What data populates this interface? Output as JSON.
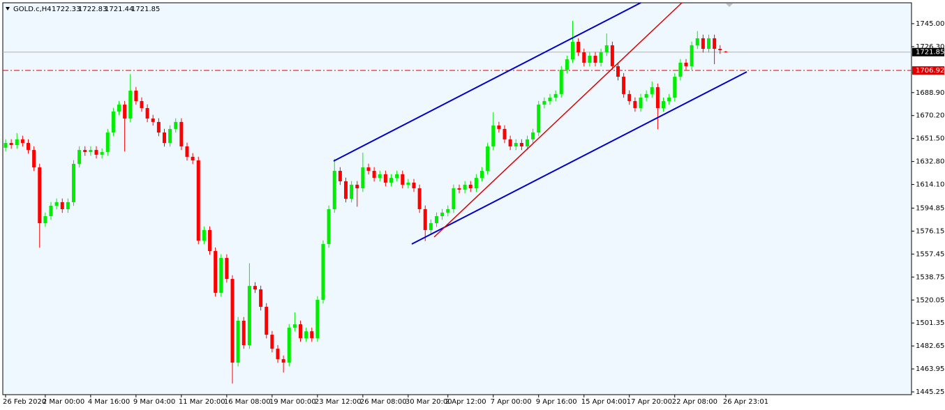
{
  "chart_data": {
    "type": "candlestick",
    "title": "GOLD.c,H4",
    "bull_color": "#00ee00",
    "bear_color": "#ff0000",
    "categories": [
      "26 Feb 2020",
      null,
      null,
      null,
      null,
      null,
      null,
      "2 Mar 00:00",
      null,
      null,
      null,
      null,
      null,
      null,
      null,
      "4 Mar 16:00",
      null,
      null,
      null,
      null,
      null,
      null,
      null,
      "9 Mar 04:00",
      null,
      null,
      null,
      null,
      null,
      null,
      null,
      "11 Mar 20:00",
      null,
      null,
      null,
      null,
      null,
      null,
      null,
      "16 Mar 08:00",
      null,
      null,
      null,
      null,
      null,
      null,
      null,
      "19 Mar 00:00",
      null,
      null,
      null,
      null,
      null,
      null,
      null,
      "23 Mar 12:00",
      null,
      null,
      null,
      null,
      null,
      null,
      null,
      "26 Mar 08:00",
      null,
      null,
      null,
      null,
      null,
      null,
      null,
      "30 Mar 20:00",
      null,
      null,
      null,
      null,
      null,
      null,
      "2 Apr 12:00",
      null,
      null,
      null,
      null,
      null,
      null,
      null,
      "7 Apr 00:00",
      null,
      null,
      null,
      null,
      null,
      null,
      null,
      "9 Apr 16:00",
      null,
      null,
      null,
      null,
      null,
      null,
      null,
      "15 Apr 04:00",
      null,
      null,
      null,
      null,
      null,
      null,
      null,
      "17 Apr 20:00",
      null,
      null,
      null,
      null,
      null,
      null,
      null,
      "22 Apr 08:00",
      null,
      null,
      null,
      null,
      null,
      null,
      null,
      null,
      "26 Apr 23:01"
    ],
    "open": [
      1644.0,
      1647.9,
      1646.2,
      1650.8,
      1647.9,
      1642.2,
      1628.0,
      1582.6,
      1588.3,
      1596.8,
      1599.7,
      1594.0,
      1599.7,
      1630.9,
      1642.2,
      1640.5,
      1642.2,
      1638.3,
      1640.5,
      1656.4,
      1673.5,
      1679.1,
      1667.8,
      1690.5,
      1682.0,
      1676.3,
      1667.8,
      1665.0,
      1656.4,
      1647.9,
      1659.3,
      1665.0,
      1645.1,
      1636.6,
      1633.7,
      1568.4,
      1577.0,
      1559.9,
      1525.9,
      1554.3,
      1537.2,
      1469.1,
      1503.2,
      1483.3,
      1531.5,
      1528.7,
      1514.5,
      1491.8,
      1480.4,
      1471.9,
      1469.1,
      1497.5,
      1500.3,
      1489.0,
      1494.6,
      1489.0,
      1520.2,
      1565.6,
      1594.0,
      1625.2,
      1616.7,
      1602.5,
      1613.9,
      1611.0,
      1628.0,
      1625.2,
      1619.5,
      1622.4,
      1615.6,
      1619.5,
      1622.4,
      1613.9,
      1615.6,
      1611.0,
      1594.0,
      1577.0,
      1582.6,
      1588.3,
      1591.2,
      1594.0,
      1611.0,
      1609.9,
      1613.9,
      1611.0,
      1619.5,
      1625.2,
      1645.1,
      1662.1,
      1659.3,
      1650.8,
      1645.1,
      1647.9,
      1645.1,
      1650.8,
      1656.4,
      1679.1,
      1682.0,
      1684.8,
      1687.7,
      1707.5,
      1716.0,
      1730.2,
      1721.7,
      1713.2,
      1718.9,
      1713.2,
      1721.7,
      1727.4,
      1710.4,
      1701.8,
      1687.7,
      1682.0,
      1676.3,
      1684.8,
      1687.7,
      1693.3,
      1676.3,
      1682.0,
      1684.8,
      1701.8,
      1713.2,
      1710.4,
      1727.4,
      1733.1,
      1724.5,
      1733.1,
      1724.5,
      1722.33
    ],
    "high": [
      1650.9,
      1650.9,
      1656.0,
      1653.8,
      1650.9,
      1645.2,
      1631.0,
      1591.3,
      1599.8,
      1602.7,
      1602.7,
      1602.7,
      1633.9,
      1645.2,
      1645.2,
      1645.2,
      1645.2,
      1643.5,
      1659.4,
      1676.5,
      1682.1,
      1682.1,
      1704.0,
      1693.5,
      1685.0,
      1679.3,
      1670.8,
      1668.0,
      1659.4,
      1662.3,
      1668.0,
      1668.0,
      1648.1,
      1639.6,
      1636.7,
      1580.0,
      1580.0,
      1562.9,
      1557.3,
      1557.3,
      1540.2,
      1506.2,
      1506.2,
      1550.0,
      1534.5,
      1531.7,
      1517.5,
      1494.8,
      1483.4,
      1474.9,
      1500.5,
      1510.0,
      1503.3,
      1497.6,
      1497.6,
      1523.2,
      1568.6,
      1597.0,
      1635.0,
      1628.2,
      1619.7,
      1616.9,
      1616.9,
      1640.0,
      1631.0,
      1628.2,
      1625.4,
      1625.4,
      1622.5,
      1625.4,
      1625.4,
      1618.6,
      1618.6,
      1614.0,
      1597.0,
      1585.6,
      1591.3,
      1594.2,
      1597.0,
      1614.0,
      1614.0,
      1616.9,
      1616.9,
      1622.5,
      1628.2,
      1648.1,
      1673.0,
      1665.1,
      1662.3,
      1653.8,
      1650.9,
      1650.9,
      1653.8,
      1659.4,
      1682.1,
      1685.0,
      1687.8,
      1690.7,
      1710.5,
      1719.0,
      1747.3,
      1733.2,
      1724.7,
      1721.9,
      1721.9,
      1724.7,
      1737.0,
      1730.4,
      1713.4,
      1704.8,
      1690.7,
      1685.0,
      1687.8,
      1690.7,
      1698.0,
      1696.3,
      1685.0,
      1687.8,
      1704.8,
      1716.2,
      1716.2,
      1730.4,
      1739.0,
      1736.1,
      1736.1,
      1736.1,
      1727.5,
      1722.83
    ],
    "low": [
      1641.0,
      1643.2,
      1643.2,
      1644.9,
      1639.2,
      1625.0,
      1562.7,
      1579.6,
      1585.3,
      1593.8,
      1591.0,
      1591.0,
      1596.7,
      1627.9,
      1637.5,
      1637.5,
      1635.3,
      1635.3,
      1637.5,
      1653.4,
      1670.5,
      1641.0,
      1664.8,
      1679.0,
      1673.3,
      1664.8,
      1662.0,
      1653.4,
      1644.9,
      1644.9,
      1656.3,
      1642.1,
      1633.6,
      1630.7,
      1565.4,
      1565.4,
      1556.9,
      1522.9,
      1522.9,
      1534.2,
      1452.0,
      1466.1,
      1480.3,
      1480.3,
      1525.7,
      1511.5,
      1488.8,
      1477.4,
      1468.9,
      1461.0,
      1466.1,
      1494.5,
      1486.0,
      1486.0,
      1486.0,
      1486.0,
      1517.2,
      1562.6,
      1591.0,
      1613.7,
      1599.5,
      1599.5,
      1596.0,
      1608.0,
      1622.2,
      1616.5,
      1616.5,
      1612.6,
      1612.6,
      1616.5,
      1610.9,
      1610.9,
      1608.0,
      1591.0,
      1568.0,
      1574.0,
      1579.6,
      1585.3,
      1588.2,
      1591.0,
      1606.9,
      1606.9,
      1608.0,
      1608.0,
      1616.5,
      1622.2,
      1642.1,
      1656.3,
      1647.8,
      1642.1,
      1642.1,
      1642.1,
      1642.1,
      1647.8,
      1653.4,
      1676.1,
      1679.0,
      1681.8,
      1684.7,
      1704.5,
      1713.0,
      1718.7,
      1710.2,
      1710.2,
      1710.2,
      1710.2,
      1718.7,
      1707.4,
      1698.8,
      1684.7,
      1679.0,
      1673.3,
      1673.3,
      1681.8,
      1684.7,
      1659.0,
      1673.3,
      1679.0,
      1681.8,
      1698.8,
      1707.4,
      1707.4,
      1724.4,
      1721.5,
      1721.5,
      1712.0,
      1720.4,
      1721.44
    ],
    "close": [
      1647.9,
      1646.2,
      1650.8,
      1647.9,
      1642.2,
      1628.0,
      1582.6,
      1588.3,
      1596.8,
      1599.7,
      1594.0,
      1599.7,
      1630.9,
      1642.2,
      1640.5,
      1642.2,
      1638.3,
      1640.5,
      1656.4,
      1673.5,
      1679.1,
      1667.8,
      1690.5,
      1682.0,
      1676.3,
      1667.8,
      1665.0,
      1656.4,
      1647.9,
      1659.3,
      1665.0,
      1645.1,
      1636.6,
      1633.7,
      1568.4,
      1577.0,
      1559.9,
      1525.9,
      1554.3,
      1537.2,
      1469.1,
      1503.2,
      1483.3,
      1531.5,
      1528.7,
      1514.5,
      1491.8,
      1480.4,
      1471.9,
      1469.1,
      1497.5,
      1500.3,
      1489.0,
      1494.6,
      1489.0,
      1520.2,
      1565.6,
      1594.0,
      1625.2,
      1616.7,
      1602.5,
      1613.9,
      1611.0,
      1628.0,
      1625.2,
      1619.5,
      1622.4,
      1615.6,
      1619.5,
      1622.4,
      1613.9,
      1615.6,
      1611.0,
      1594.0,
      1577.0,
      1582.6,
      1588.3,
      1591.2,
      1594.0,
      1611.0,
      1609.9,
      1613.9,
      1611.0,
      1619.5,
      1625.2,
      1645.1,
      1662.1,
      1659.3,
      1650.8,
      1645.1,
      1647.9,
      1645.1,
      1650.8,
      1656.4,
      1679.1,
      1682.0,
      1684.8,
      1687.7,
      1707.5,
      1716.0,
      1730.2,
      1721.7,
      1713.2,
      1718.9,
      1713.2,
      1721.7,
      1727.4,
      1710.4,
      1701.8,
      1687.7,
      1682.0,
      1676.3,
      1684.8,
      1687.7,
      1693.3,
      1676.3,
      1682.0,
      1684.8,
      1701.8,
      1713.2,
      1710.4,
      1727.4,
      1733.1,
      1724.5,
      1733.1,
      1724.5,
      1723.4,
      1721.85
    ],
    "ylim": [
      1443.0,
      1762.0
    ],
    "yticks": [
      {
        "value": 1745.0,
        "label": "1745.00"
      },
      {
        "value": 1726.3,
        "label": "1726.30"
      },
      {
        "value": 1688.9,
        "label": "1688.90"
      },
      {
        "value": 1670.2,
        "label": "1670.20"
      },
      {
        "value": 1651.5,
        "label": "1651.50"
      },
      {
        "value": 1632.8,
        "label": "1632.80"
      },
      {
        "value": 1614.1,
        "label": "1614.10"
      },
      {
        "value": 1594.85,
        "label": "1594.85"
      },
      {
        "value": 1576.15,
        "label": "1576.15"
      },
      {
        "value": 1557.45,
        "label": "1557.45"
      },
      {
        "value": 1538.75,
        "label": "1538.75"
      },
      {
        "value": 1520.05,
        "label": "1520.05"
      },
      {
        "value": 1501.35,
        "label": "1501.35"
      },
      {
        "value": 1482.65,
        "label": "1482.65"
      },
      {
        "value": 1463.95,
        "label": "1463.95"
      },
      {
        "value": 1445.25,
        "label": "1445.25"
      }
    ],
    "level": {
      "value": 1706.92,
      "color": "#dd0000"
    },
    "grid": false
  }
}
